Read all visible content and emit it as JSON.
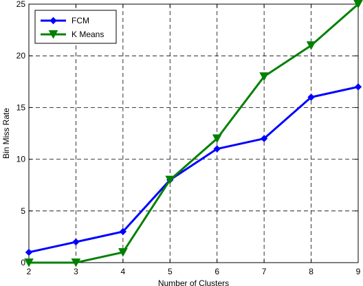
{
  "chart_data": {
    "type": "line",
    "title": "",
    "xlabel": "Number of Clusters",
    "ylabel": "Bin Miss Rate",
    "x": [
      2,
      3,
      4,
      5,
      6,
      7,
      8,
      9
    ],
    "xlim": [
      2,
      9
    ],
    "ylim": [
      0,
      25
    ],
    "xticks": [
      "2",
      "3",
      "4",
      "5",
      "6",
      "7",
      "8",
      "9"
    ],
    "yticks": [
      "0",
      "5",
      "10",
      "15",
      "20",
      "25"
    ],
    "grid": true,
    "legend_position": "top-left",
    "series": [
      {
        "name": "FCM",
        "values": [
          1,
          2,
          3,
          8,
          11,
          12,
          16,
          17
        ],
        "color": "#0000ff",
        "marker": "diamond"
      },
      {
        "name": "K Means",
        "values": [
          0,
          0,
          1,
          8,
          12,
          18,
          21,
          25
        ],
        "color": "#008000",
        "marker": "triangle-down"
      }
    ]
  }
}
